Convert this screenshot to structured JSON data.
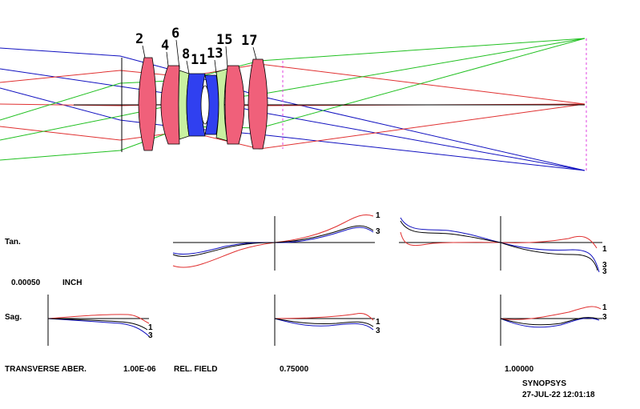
{
  "colors": {
    "red": "#e03030",
    "green": "#20c020",
    "blue": "#1010c0",
    "lens_pink": "#f0607a",
    "lens_green": "#c8f0a0",
    "lens_blue": "#3040f0",
    "axis": "#000000",
    "image_plane": "#e040e0"
  },
  "surface_labels": [
    "2",
    "4",
    "6",
    "8",
    "11",
    "13",
    "15",
    "17"
  ],
  "aberration": {
    "tan_label": "Tan.",
    "sag_label": "Sag.",
    "scale_value": "0.00050",
    "scale_unit": "INCH",
    "curve_labels": [
      "1",
      "3"
    ]
  },
  "footer": {
    "title": "TRANSVERSE ABER.",
    "wavelength": "1.00E-06",
    "field_label": "REL. FIELD",
    "field_1": "0.75000",
    "field_2": "1.00000",
    "program": "SYNOPSYS",
    "timestamp": "27-JUL-22  12:01:18"
  }
}
